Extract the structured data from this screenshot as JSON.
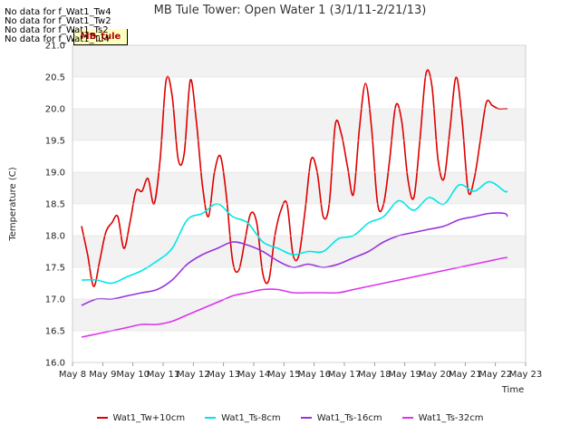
{
  "chart_data": {
    "type": "line",
    "title": "MB Tule Tower: Open Water 1 (3/1/11-2/21/13)",
    "xlabel": "Time",
    "ylabel": "Temperature (C)",
    "xlim": [
      0,
      15
    ],
    "ylim": [
      16.0,
      21.0
    ],
    "x_ticks": [
      0,
      1,
      2,
      3,
      4,
      5,
      6,
      7,
      8,
      9,
      10,
      11,
      12,
      13,
      14,
      15
    ],
    "x_tick_labels": [
      "May 8",
      "May 9",
      "May 10",
      "May 11",
      "May 12",
      "May 13",
      "May 14",
      "May 15",
      "May 16",
      "May 17",
      "May 18",
      "May 19",
      "May 20",
      "May 21",
      "May 22",
      "May 23"
    ],
    "y_ticks": [
      16.0,
      16.5,
      17.0,
      17.5,
      18.0,
      18.5,
      19.0,
      19.5,
      20.0,
      20.5,
      21.0
    ],
    "y_tick_labels": [
      "16.0",
      "16.5",
      "17.0",
      "17.5",
      "18.0",
      "18.5",
      "19.0",
      "19.5",
      "20.0",
      "20.5",
      "21.0"
    ],
    "grid": "alternating horizontal bands",
    "series": [
      {
        "name": "Wat1_Tw+10cm",
        "color": "#dd0000",
        "x": [
          0.3,
          0.5,
          0.7,
          0.9,
          1.1,
          1.3,
          1.5,
          1.7,
          1.9,
          2.1,
          2.3,
          2.5,
          2.7,
          2.9,
          3.1,
          3.3,
          3.5,
          3.7,
          3.9,
          4.1,
          4.3,
          4.5,
          4.7,
          4.9,
          5.1,
          5.3,
          5.5,
          5.7,
          5.9,
          6.1,
          6.3,
          6.5,
          6.7,
          6.9,
          7.1,
          7.3,
          7.5,
          7.7,
          7.9,
          8.1,
          8.3,
          8.5,
          8.7,
          8.9,
          9.1,
          9.3,
          9.5,
          9.7,
          9.9,
          10.1,
          10.3,
          10.5,
          10.7,
          10.9,
          11.1,
          11.3,
          11.5,
          11.7,
          11.9,
          12.1,
          12.3,
          12.5,
          12.7,
          12.9,
          13.1,
          13.3,
          13.5,
          13.7,
          13.9,
          14.1,
          14.3,
          14.4
        ],
        "values": [
          18.15,
          17.7,
          17.2,
          17.6,
          18.05,
          18.2,
          18.3,
          17.8,
          18.2,
          18.7,
          18.7,
          18.9,
          18.5,
          19.2,
          20.45,
          20.2,
          19.2,
          19.3,
          20.45,
          19.8,
          18.8,
          18.3,
          19.0,
          19.25,
          18.6,
          17.6,
          17.45,
          17.9,
          18.35,
          18.2,
          17.4,
          17.3,
          18.0,
          18.4,
          18.5,
          17.7,
          17.7,
          18.4,
          19.2,
          19.0,
          18.3,
          18.5,
          19.75,
          19.6,
          19.1,
          18.65,
          19.7,
          20.4,
          19.7,
          18.5,
          18.5,
          19.2,
          20.05,
          19.8,
          18.9,
          18.6,
          19.5,
          20.55,
          20.35,
          19.2,
          18.9,
          19.7,
          20.5,
          19.8,
          18.7,
          18.9,
          19.5,
          20.1,
          20.05,
          20.0,
          20.0,
          20.0
        ]
      },
      {
        "name": "Wat1_Ts-8cm",
        "color": "#00e6e6",
        "x": [
          0.3,
          0.8,
          1.3,
          1.8,
          2.3,
          2.8,
          3.3,
          3.8,
          4.3,
          4.8,
          5.3,
          5.8,
          6.3,
          6.8,
          7.3,
          7.8,
          8.3,
          8.8,
          9.3,
          9.8,
          10.3,
          10.8,
          11.3,
          11.8,
          12.3,
          12.8,
          13.3,
          13.8,
          14.3,
          14.4
        ],
        "values": [
          17.3,
          17.3,
          17.25,
          17.35,
          17.45,
          17.6,
          17.8,
          18.25,
          18.35,
          18.5,
          18.3,
          18.2,
          17.9,
          17.8,
          17.7,
          17.75,
          17.75,
          17.95,
          18.0,
          18.2,
          18.3,
          18.55,
          18.4,
          18.6,
          18.5,
          18.8,
          18.7,
          18.85,
          18.7,
          18.7
        ]
      },
      {
        "name": "Wat1_Ts-16cm",
        "color": "#9933dd",
        "x": [
          0.3,
          0.8,
          1.3,
          1.8,
          2.3,
          2.8,
          3.3,
          3.8,
          4.3,
          4.8,
          5.3,
          5.8,
          6.3,
          6.8,
          7.3,
          7.8,
          8.3,
          8.8,
          9.3,
          9.8,
          10.3,
          10.8,
          11.3,
          11.8,
          12.3,
          12.8,
          13.3,
          13.8,
          14.3,
          14.4
        ],
        "values": [
          16.9,
          17.0,
          17.0,
          17.05,
          17.1,
          17.15,
          17.3,
          17.55,
          17.7,
          17.8,
          17.9,
          17.85,
          17.75,
          17.6,
          17.5,
          17.55,
          17.5,
          17.55,
          17.65,
          17.75,
          17.9,
          18.0,
          18.05,
          18.1,
          18.15,
          18.25,
          18.3,
          18.35,
          18.35,
          18.3
        ]
      },
      {
        "name": "Wat1_Ts-32cm",
        "color": "#dd33ee",
        "x": [
          0.3,
          0.8,
          1.3,
          1.8,
          2.3,
          2.8,
          3.3,
          3.8,
          4.3,
          4.8,
          5.3,
          5.8,
          6.3,
          6.8,
          7.3,
          7.8,
          8.3,
          8.8,
          9.3,
          9.8,
          10.3,
          10.8,
          11.3,
          11.8,
          12.3,
          12.8,
          13.3,
          13.8,
          14.3,
          14.4
        ],
        "values": [
          16.4,
          16.45,
          16.5,
          16.55,
          16.6,
          16.6,
          16.65,
          16.75,
          16.85,
          16.95,
          17.05,
          17.1,
          17.15,
          17.15,
          17.1,
          17.1,
          17.1,
          17.1,
          17.15,
          17.2,
          17.25,
          17.3,
          17.35,
          17.4,
          17.45,
          17.5,
          17.55,
          17.6,
          17.65,
          17.65
        ]
      }
    ]
  },
  "no_data_notes": [
    "No data for f_Wat1_Tw4",
    "No data for f_Wat1_Tw2",
    "No data for f_Wat1_Ts2",
    "No data for f_Wat1_Tu4"
  ],
  "site_label": "MB_tule"
}
